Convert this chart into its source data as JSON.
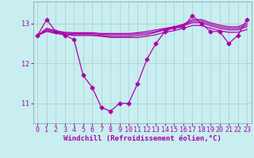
{
  "xlabel": "Windchill (Refroidissement éolien,°C)",
  "background_color": "#c8eef0",
  "line_color": "#aa00aa",
  "grid_color": "#aacccc",
  "x": [
    0,
    1,
    2,
    3,
    4,
    5,
    6,
    7,
    8,
    9,
    10,
    11,
    12,
    13,
    14,
    15,
    16,
    17,
    18,
    19,
    20,
    21,
    22,
    23
  ],
  "series": [
    {
      "y": [
        12.7,
        13.1,
        12.8,
        12.7,
        12.6,
        11.7,
        11.4,
        10.9,
        10.8,
        11.0,
        11.0,
        11.5,
        12.1,
        12.5,
        12.8,
        12.9,
        12.9,
        13.2,
        13.0,
        12.8,
        12.8,
        12.5,
        12.7,
        13.1
      ],
      "marker": true
    },
    {
      "y": [
        12.7,
        12.8,
        12.75,
        12.72,
        12.7,
        12.7,
        12.7,
        12.68,
        12.65,
        12.65,
        12.65,
        12.65,
        12.68,
        12.72,
        12.78,
        12.82,
        12.88,
        12.95,
        12.95,
        12.88,
        12.82,
        12.78,
        12.78,
        12.85
      ],
      "marker": false
    },
    {
      "y": [
        12.7,
        12.82,
        12.78,
        12.74,
        12.72,
        12.72,
        12.72,
        12.7,
        12.68,
        12.68,
        12.68,
        12.7,
        12.72,
        12.78,
        12.84,
        12.88,
        12.94,
        13.02,
        13.02,
        12.94,
        12.88,
        12.84,
        12.84,
        12.92
      ],
      "marker": false
    },
    {
      "y": [
        12.7,
        12.85,
        12.8,
        12.76,
        12.75,
        12.75,
        12.75,
        12.73,
        12.72,
        12.72,
        12.72,
        12.74,
        12.76,
        12.8,
        12.86,
        12.9,
        12.96,
        13.06,
        13.06,
        12.98,
        12.92,
        12.88,
        12.88,
        12.96
      ],
      "marker": false
    },
    {
      "y": [
        12.7,
        12.88,
        12.82,
        12.78,
        12.77,
        12.77,
        12.77,
        12.75,
        12.75,
        12.75,
        12.75,
        12.77,
        12.8,
        12.84,
        12.88,
        12.92,
        12.98,
        13.1,
        13.1,
        13.02,
        12.96,
        12.92,
        12.92,
        13.0
      ],
      "marker": false
    }
  ],
  "ylim": [
    10.5,
    13.55
  ],
  "yticks": [
    11,
    12,
    13
  ],
  "xticks": [
    0,
    1,
    2,
    3,
    4,
    5,
    6,
    7,
    8,
    9,
    10,
    11,
    12,
    13,
    14,
    15,
    16,
    17,
    18,
    19,
    20,
    21,
    22,
    23
  ],
  "marker_style": "D",
  "markersize": 2.5,
  "linewidth": 0.9,
  "xlabel_fontsize": 6.5,
  "tick_fontsize": 6
}
